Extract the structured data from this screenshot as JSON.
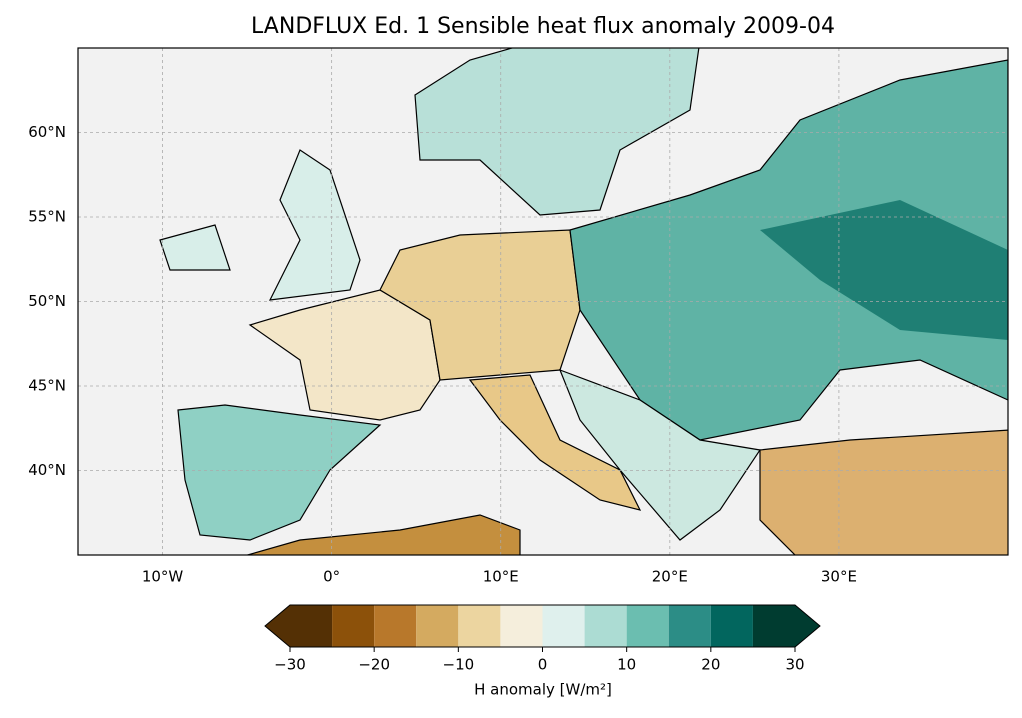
{
  "map": {
    "title": "LANDFLUX Ed. 1 Sensible heat flux anomaly 2009-04",
    "xlim": [
      -15,
      40
    ],
    "ylim": [
      35,
      65
    ],
    "xticks": [
      {
        "value": -10,
        "label": "10°W"
      },
      {
        "value": 0,
        "label": "0°"
      },
      {
        "value": 10,
        "label": "10°E"
      },
      {
        "value": 20,
        "label": "20°E"
      },
      {
        "value": 30,
        "label": "30°E"
      }
    ],
    "yticks": [
      {
        "value": 40,
        "label": "40°N"
      },
      {
        "value": 45,
        "label": "45°N"
      },
      {
        "value": 50,
        "label": "50°N"
      },
      {
        "value": 55,
        "label": "55°N"
      },
      {
        "value": 60,
        "label": "60°N"
      }
    ],
    "grid": true
  },
  "colorbar": {
    "label": "H anomaly [W/m²]",
    "boundaries": [
      -30,
      -25,
      -20,
      -15,
      -10,
      -5,
      0,
      5,
      10,
      15,
      20,
      25,
      30
    ],
    "colors": [
      "#543005",
      "#8c510a",
      "#b8782b",
      "#d4aa60",
      "#ecd5a0",
      "#f5eedc",
      "#dff0ed",
      "#acdcd3",
      "#6bbeb0",
      "#2c8d86",
      "#02665e",
      "#003c30"
    ],
    "extend": "both",
    "ticks": [
      {
        "value": -30,
        "label": "−30"
      },
      {
        "value": -20,
        "label": "−20"
      },
      {
        "value": -10,
        "label": "−10"
      },
      0,
      10,
      20,
      30
    ]
  }
}
